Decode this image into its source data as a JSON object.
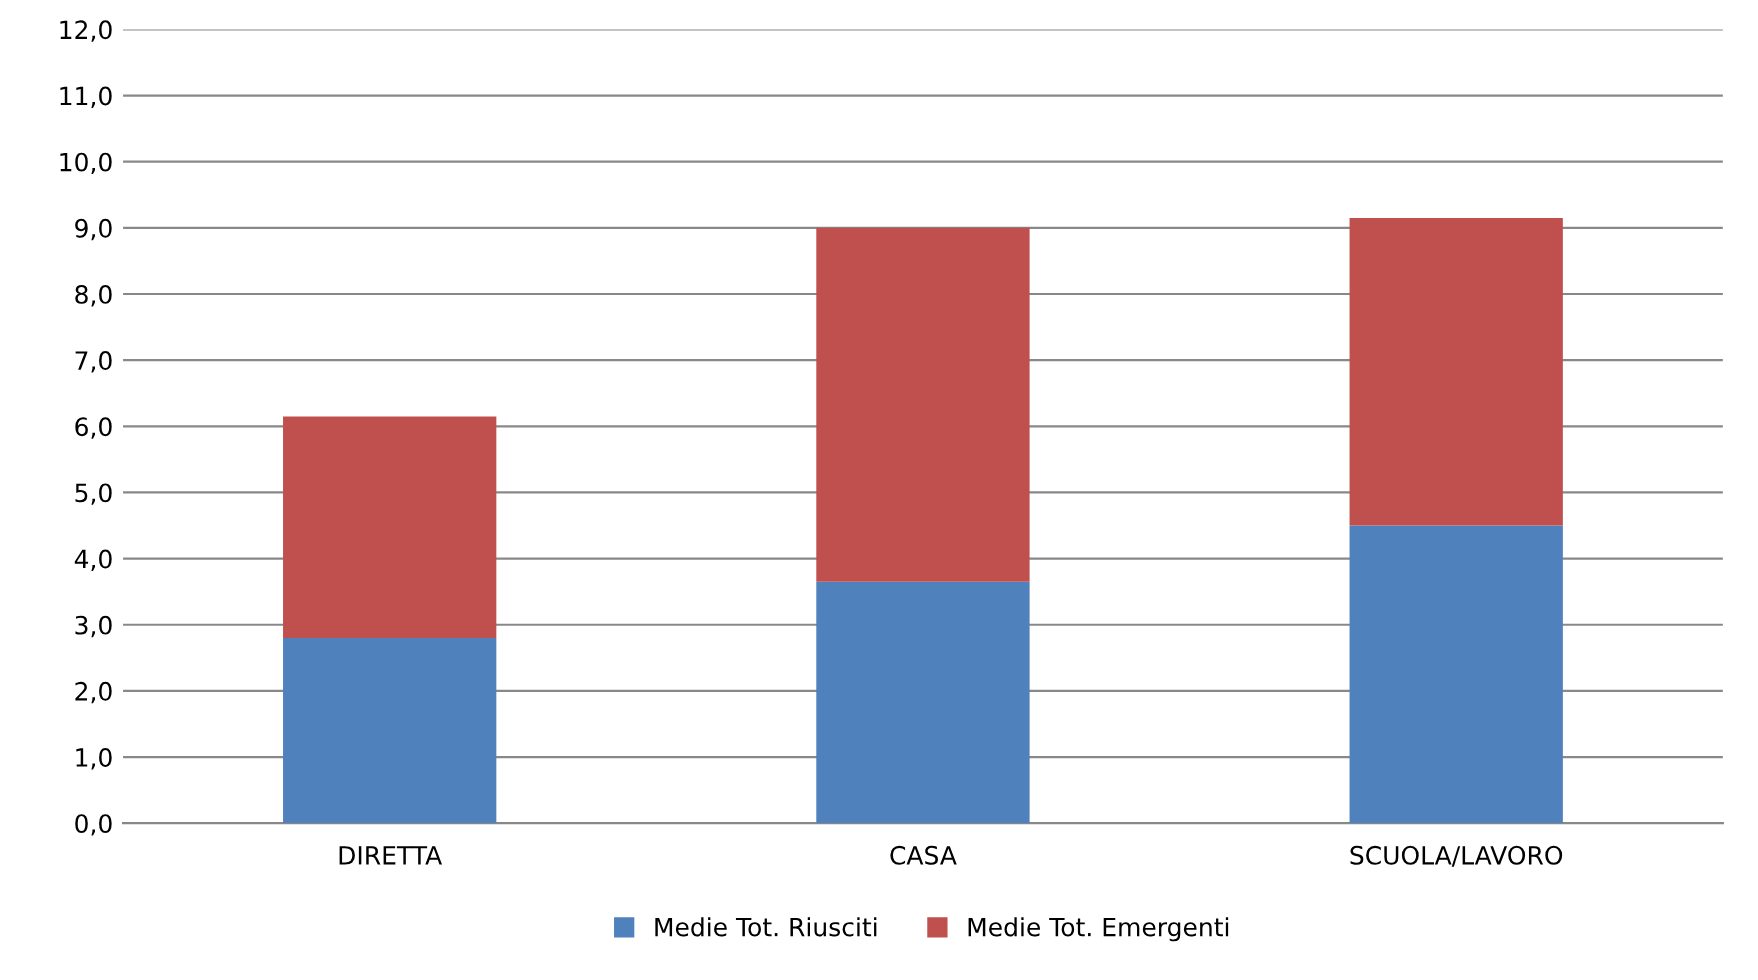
{
  "chart_data": {
    "type": "bar",
    "stacked": true,
    "categories": [
      "DIRETTA",
      "CASA",
      "SCUOLA/LAVORO"
    ],
    "series": [
      {
        "name": "Medie Tot. Riusciti",
        "color": "#4f81bd",
        "values": [
          2.8,
          3.65,
          4.5
        ]
      },
      {
        "name": "Medie Tot. Emergenti",
        "color": "#c0504d",
        "values": [
          3.35,
          5.35,
          4.65
        ]
      }
    ],
    "ylim": [
      0,
      12
    ],
    "yticks": [
      {
        "value": 0,
        "label": "0,0"
      },
      {
        "value": 1,
        "label": "1,0"
      },
      {
        "value": 2,
        "label": "2,0"
      },
      {
        "value": 3,
        "label": "3,0"
      },
      {
        "value": 4,
        "label": "4,0"
      },
      {
        "value": 5,
        "label": "5,0"
      },
      {
        "value": 6,
        "label": "6,0"
      },
      {
        "value": 7,
        "label": "7,0"
      },
      {
        "value": 8,
        "label": "8,0"
      },
      {
        "value": 9,
        "label": "9,0"
      },
      {
        "value": 10,
        "label": "10,0"
      },
      {
        "value": 11,
        "label": "11,0"
      },
      {
        "value": 12,
        "label": "12,0"
      }
    ],
    "grid": "y",
    "legend": "bottom"
  }
}
